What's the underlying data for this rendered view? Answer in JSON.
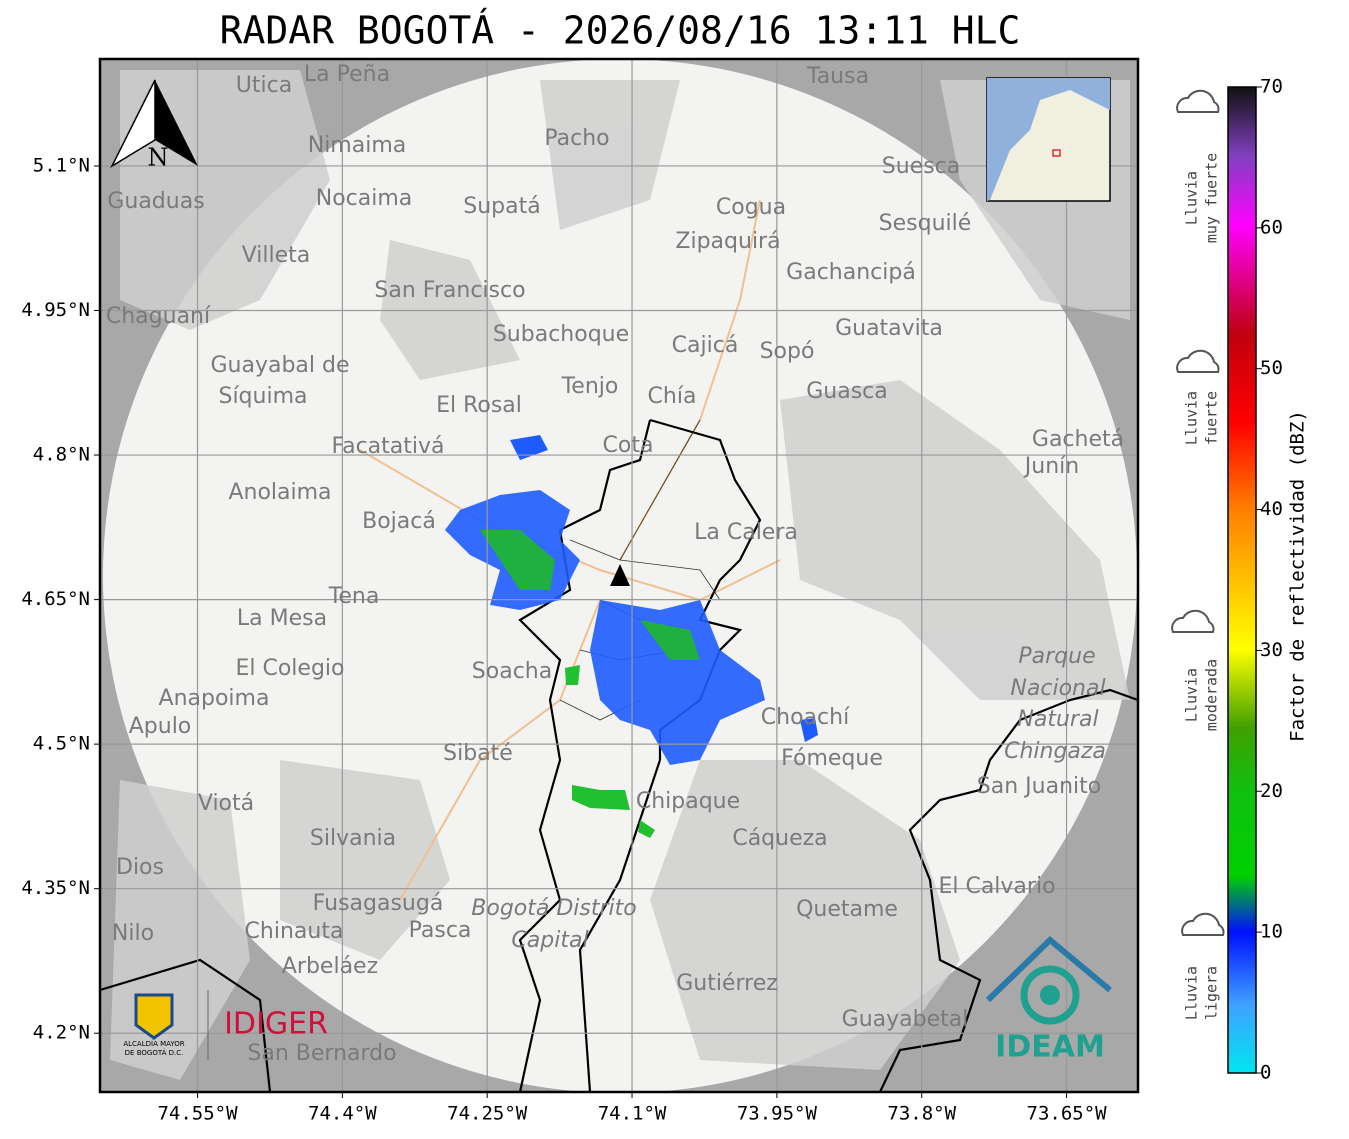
{
  "title": "RADAR BOGOTÁ - 2026/08/16 13:11 HLC",
  "map": {
    "xlim": [
      -74.651,
      -73.576
    ],
    "ylim": [
      4.139,
      5.211
    ],
    "xticks": [
      {
        "value": -74.55,
        "label": "74.55°W"
      },
      {
        "value": -74.4,
        "label": "74.4°W"
      },
      {
        "value": -74.25,
        "label": "74.25°W"
      },
      {
        "value": -74.1,
        "label": "74.1°W"
      },
      {
        "value": -73.95,
        "label": "73.95°W"
      },
      {
        "value": -73.8,
        "label": "73.8°W"
      },
      {
        "value": -73.65,
        "label": "73.65°W"
      }
    ],
    "yticks": [
      {
        "value": 5.1,
        "label": "5.1°N"
      },
      {
        "value": 4.95,
        "label": "4.95°N"
      },
      {
        "value": 4.8,
        "label": "4.8°N"
      },
      {
        "value": 4.65,
        "label": "4.65°N"
      },
      {
        "value": 4.5,
        "label": "4.5°N"
      },
      {
        "value": 4.35,
        "label": "4.35°N"
      },
      {
        "value": 4.2,
        "label": "4.2°N"
      }
    ],
    "north": "N",
    "places": [
      "La Peña",
      "Utica",
      "Tausa",
      "Nimaima",
      "Pacho",
      "Suesca",
      "Guaduas",
      "Nocaima",
      "Supatá",
      "Cogua",
      "Sesquilé",
      "Zipaquirá",
      "Villeta",
      "San Francisco",
      "Gachancipá",
      "Chaguaní",
      "Subachoque",
      "Cajicá",
      "Sopó",
      "Guatavita",
      "Guayabal de",
      "Síquima",
      "Tenjo",
      "Chía",
      "Guasca",
      "El Rosal",
      "Facatativá",
      "Cota",
      "Gachetá",
      "Junín",
      "Anolaima",
      "Bojacá",
      "La Calera",
      "Tena",
      "La Mesa",
      "El Colegio",
      "Soacha",
      "Parque",
      "Nacional",
      "Natural",
      "Chingaza",
      "Anapoima",
      "Apulo",
      "Choachí",
      "Fómeque",
      "Sibaté",
      "San Juanito",
      "Viotá",
      "Chipaque",
      "Silvania",
      "Cáqueza",
      "Dios",
      "El Calvario",
      "Fusagasugá",
      "Quetame",
      "Bogotá Distrito",
      "Capital",
      "Nilo",
      "Chinauta",
      "Pasca",
      "Arbeláez",
      "Gutiérrez",
      "Guayabetal",
      "San Bernardo"
    ]
  },
  "colorbar": {
    "label": "Factor de reflectividad (dBZ)",
    "lim": [
      0,
      70
    ],
    "ticks": [
      0,
      10,
      20,
      30,
      40,
      50,
      60,
      70
    ]
  },
  "rain_legend": [
    [
      "Lluvia",
      "muy fuerte"
    ],
    [
      "Lluvia",
      "fuerte"
    ],
    [
      "Lluvia",
      "moderada"
    ],
    [
      "Lluvia",
      "ligera"
    ]
  ],
  "logos": {
    "alcaldia": [
      "ALCALDÍA MAYOR",
      "DE BOGOTÁ D.C."
    ],
    "idiger": "IDIGER",
    "ideam": "IDEAM"
  }
}
